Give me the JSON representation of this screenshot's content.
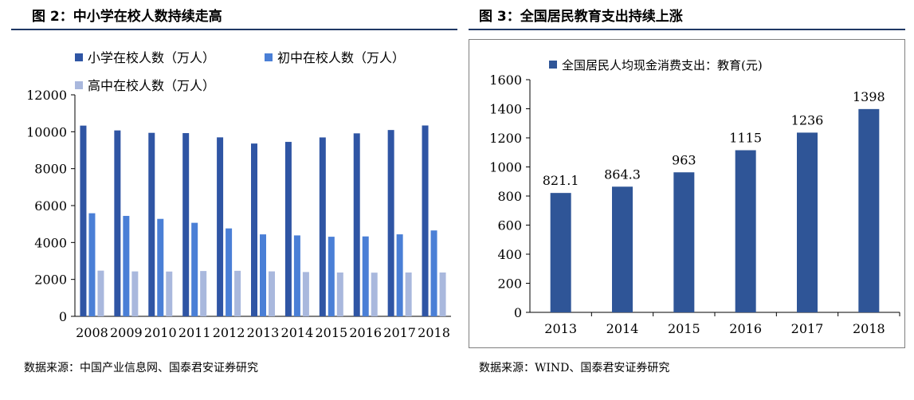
{
  "left": {
    "fig_title": "图  2：中小学在校人数持续走高",
    "source": "数据来源：中国产业信息网、国泰君安证券研究",
    "chart_data": {
      "type": "bar",
      "categories": [
        "2008",
        "2009",
        "2010",
        "2011",
        "2012",
        "2013",
        "2014",
        "2015",
        "2016",
        "2017",
        "2018"
      ],
      "series": [
        {
          "name": "小学在校人数（万人）",
          "color": "#2f55a4",
          "values": [
            10332,
            10072,
            9941,
            9926,
            9696,
            9361,
            9451,
            9692,
            9913,
            10094,
            10339
          ]
        },
        {
          "name": "初中在校人数（万人）",
          "color": "#4a7fd6",
          "values": [
            5585,
            5441,
            5279,
            5067,
            4763,
            4440,
            4384,
            4312,
            4329,
            4442,
            4653
          ]
        },
        {
          "name": "高中在校人数（万人）",
          "color": "#a9b8dd",
          "values": [
            2476,
            2434,
            2427,
            2455,
            2467,
            2436,
            2401,
            2374,
            2367,
            2375,
            2375
          ]
        }
      ],
      "yticks": [
        "0",
        "2000",
        "4000",
        "6000",
        "8000",
        "10000",
        "12000"
      ],
      "ylim": [
        0,
        12000
      ],
      "legend": "top"
    }
  },
  "right": {
    "fig_title": "图  3：全国居民教育支出持续上涨",
    "source": "数据来源：WIND、国泰君安证券研究",
    "chart_data": {
      "type": "bar",
      "categories": [
        "2013",
        "2014",
        "2015",
        "2016",
        "2017",
        "2018"
      ],
      "series": [
        {
          "name": "全国居民人均现金消费支出：教育(元)",
          "color": "#2f5597",
          "values": [
            821.1,
            864.3,
            963,
            1115,
            1236,
            1398
          ]
        }
      ],
      "data_labels": [
        "821.1",
        "864.3",
        "963",
        "1115",
        "1236",
        "1398"
      ],
      "yticks": [
        "0",
        "200",
        "400",
        "600",
        "800",
        "1000",
        "1200",
        "1400",
        "1600"
      ],
      "ylim": [
        0,
        1600
      ],
      "legend": "top-left"
    }
  }
}
